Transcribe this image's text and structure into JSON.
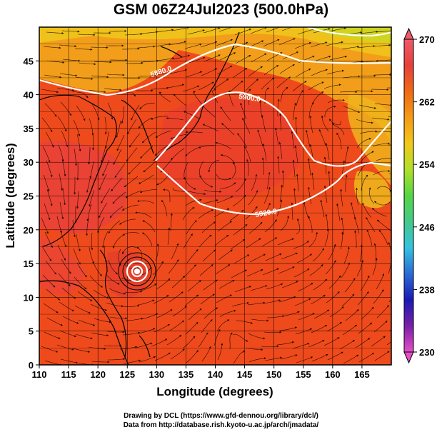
{
  "title": "GSM 06Z24Jul2023 (500.0hPa)",
  "xlabel": "Longitude (degrees)",
  "ylabel": "Latitude (degrees)",
  "credits": {
    "drawing": "Drawing by DCL (https://www.gfd-dennou.org/library/dcl/)",
    "data": "Data from http://database.rish.kyoto-u.ac.jp/arch/jmadata/"
  },
  "x_ticks": [
    "110",
    "115",
    "120",
    "125",
    "130",
    "135",
    "140",
    "145",
    "150",
    "155",
    "160",
    "165"
  ],
  "y_ticks": [
    "0",
    "5",
    "10",
    "15",
    "20",
    "25",
    "30",
    "35",
    "40",
    "45"
  ],
  "colorbar": {
    "ticks": [
      "230",
      "238",
      "246",
      "254",
      "262",
      "270"
    ],
    "min": 230,
    "max": 270,
    "colors": [
      "#e64ec8",
      "#7a1fa8",
      "#1a1ab5",
      "#2a6bd6",
      "#33c2e0",
      "#44c98a",
      "#55d644",
      "#b0e02a",
      "#f2c81a",
      "#f59a16",
      "#f06a14",
      "#e8403c",
      "#ee5a6a"
    ]
  },
  "contour_labels": [
    "5880.0",
    "5900.0",
    "5920.0"
  ],
  "map_data": {
    "lon_range": [
      110,
      170
    ],
    "lat_range": [
      0,
      50
    ],
    "typhoon_center": {
      "lon": 126,
      "lat": 15.5
    }
  }
}
